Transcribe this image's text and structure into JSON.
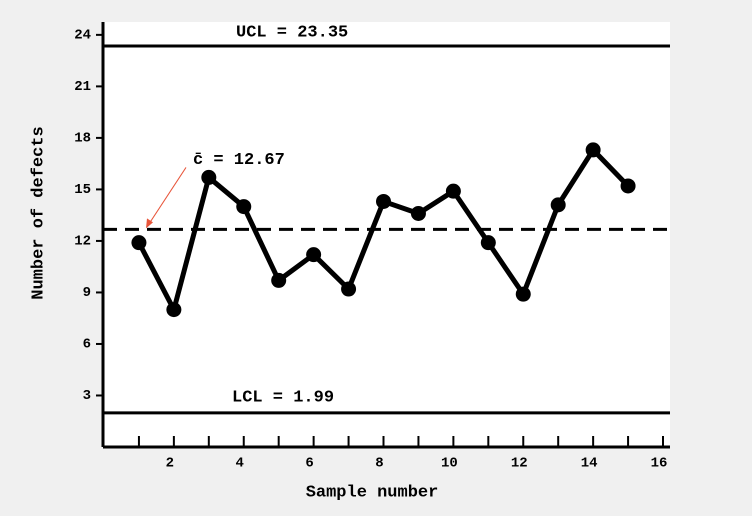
{
  "chart_data": {
    "type": "line",
    "xlabel": "Sample number",
    "ylabel": "Number of defects",
    "x": [
      1,
      2,
      3,
      4,
      5,
      6,
      7,
      8,
      9,
      10,
      11,
      12,
      13,
      14,
      15
    ],
    "series": [
      {
        "color": "#000000",
        "values": [
          11.9,
          8,
          15.7,
          14,
          9.7,
          11.2,
          9.2,
          14.3,
          13.6,
          14.9,
          11.9,
          8.9,
          14.1,
          17.3,
          15.2
        ]
      }
    ],
    "xlim": [
      0,
      16.2
    ],
    "xticks": [
      2,
      4,
      6,
      8,
      10,
      12,
      14,
      16
    ],
    "xminor_ticks": [
      1,
      3,
      5,
      7,
      9,
      11,
      13,
      15
    ],
    "ylim": [
      0,
      24.4
    ],
    "yticks": [
      3,
      6,
      9,
      12,
      15,
      18,
      21,
      24
    ],
    "control_lines": [
      {
        "label": "UCL = 23.35",
        "value": 23.35,
        "style": "solid"
      },
      {
        "label": "c̄ = 12.67",
        "value": 12.67,
        "style": "dashed"
      },
      {
        "label": "LCL = 1.99",
        "value": 1.99,
        "style": "solid"
      }
    ],
    "annotation_color": "#e8553a"
  }
}
